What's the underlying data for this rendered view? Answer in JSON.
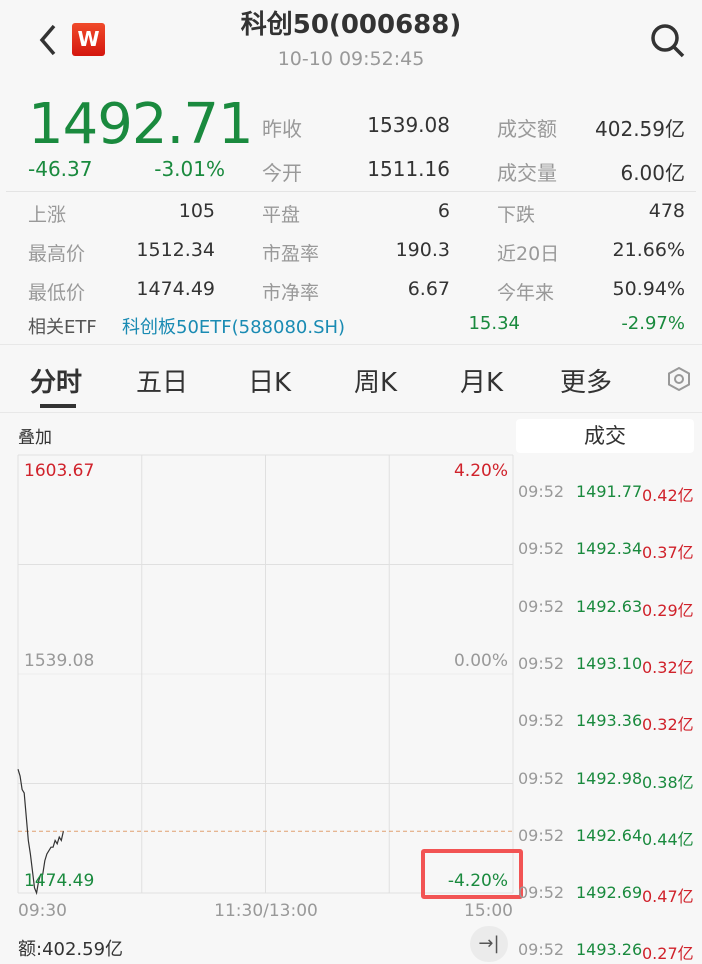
{
  "header": {
    "title": "科创50(000688)",
    "datetime": "10-10 09:52:45",
    "logo": "W",
    "icons": [
      "back-chevron-icon",
      "w-logo-icon",
      "search-icon"
    ]
  },
  "quote": {
    "price": "1492.71",
    "change": "-46.37",
    "change_pct": "-3.01%",
    "stats": [
      [
        "昨收",
        "1539.08"
      ],
      [
        "今开",
        "1511.16"
      ],
      [
        "成交额",
        "402.59亿"
      ],
      [
        "成交量",
        "6.00亿"
      ]
    ]
  },
  "grid": [
    [
      "上涨",
      "105"
    ],
    [
      "平盘",
      "6"
    ],
    [
      "下跌",
      "478"
    ],
    [
      "最高价",
      "1512.34"
    ],
    [
      "市盈率",
      "190.3"
    ],
    [
      "近20日",
      "21.66%"
    ],
    [
      "最低价",
      "1474.49"
    ],
    [
      "市净率",
      "6.67"
    ],
    [
      "今年来",
      "50.94%"
    ]
  ],
  "etf": {
    "label": "相关ETF",
    "name": "科创板50ETF(588080.SH)",
    "price": "15.34",
    "change": "-2.97%"
  },
  "tabs": [
    "分时",
    "五日",
    "日K",
    "周K",
    "月K",
    "更多"
  ],
  "overlay_label": "叠加",
  "trades_header": "成交",
  "trades": [
    [
      "09:52",
      "1491.77",
      "0.42亿",
      "r"
    ],
    [
      "09:52",
      "1492.34",
      "0.37亿",
      "r"
    ],
    [
      "09:52",
      "1492.63",
      "0.29亿",
      "r"
    ],
    [
      "09:52",
      "1493.10",
      "0.32亿",
      "r"
    ],
    [
      "09:52",
      "1493.36",
      "0.32亿",
      "r"
    ],
    [
      "09:52",
      "1492.98",
      "0.38亿",
      "g"
    ],
    [
      "09:52",
      "1492.64",
      "0.44亿",
      "g"
    ],
    [
      "09:52",
      "1492.69",
      "0.47亿",
      "r"
    ],
    [
      "09:52",
      "1493.26",
      "0.27亿",
      "r"
    ]
  ],
  "amount_label": "额:402.59亿",
  "colors": {
    "up": "#d0222b",
    "down": "#1a8a3e",
    "highlight": "#f25454"
  },
  "chart_data": {
    "type": "line",
    "ylim": [
      1474.49,
      1603.67
    ],
    "prev_close": 1539.08,
    "current": 1492.71,
    "y_labels_left": [
      "1603.67",
      "1539.08",
      "1474.49"
    ],
    "y_labels_right": [
      "4.20%",
      "0.00%",
      "-4.20%"
    ],
    "x_labels": [
      "09:30",
      "11:30/13:00",
      "15:00"
    ],
    "x_range_minutes": [
      0,
      240
    ],
    "minutes": [
      0,
      1,
      2,
      3,
      5,
      6,
      8,
      9,
      10,
      11,
      12,
      13,
      14,
      16,
      17,
      18,
      19,
      20,
      21,
      22
    ],
    "values": [
      1511,
      1509,
      1505,
      1504,
      1490,
      1486,
      1476,
      1474.5,
      1478,
      1480,
      1480,
      1484,
      1486,
      1488,
      1488,
      1490,
      1489,
      1491,
      1490,
      1492.7
    ]
  }
}
